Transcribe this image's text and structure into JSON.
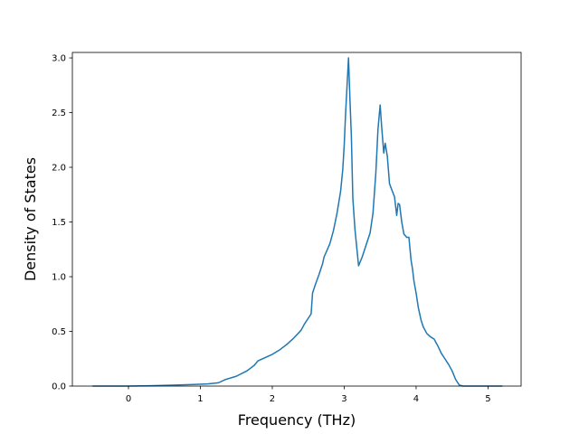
{
  "chart_data": {
    "type": "line",
    "title": "",
    "xlabel": "Frequency (THz)",
    "ylabel": "Density of States",
    "xlim": [
      -0.78,
      5.46
    ],
    "ylim": [
      0,
      3.05
    ],
    "xticks": [
      0,
      1,
      2,
      3,
      4,
      5
    ],
    "xtick_labels": [
      "0",
      "1",
      "2",
      "3",
      "4",
      "5"
    ],
    "yticks": [
      0.0,
      0.5,
      1.0,
      1.5,
      2.0,
      2.5,
      3.0
    ],
    "ytick_labels": [
      "0.0",
      "0.5",
      "1.0",
      "1.5",
      "2.0",
      "2.5",
      "3.0"
    ],
    "grid": false,
    "legend": "none",
    "series": [
      {
        "color": "#1f77b4",
        "x": [
          -0.5,
          0.0,
          0.3,
          0.6,
          0.9,
          1.1,
          1.25,
          1.35,
          1.5,
          1.65,
          1.75,
          1.8,
          1.9,
          2.0,
          2.1,
          2.2,
          2.3,
          2.4,
          2.45,
          2.5,
          2.54,
          2.56,
          2.6,
          2.65,
          2.7,
          2.72,
          2.8,
          2.85,
          2.9,
          2.95,
          2.98,
          3.0,
          3.02,
          3.04,
          3.06,
          3.08,
          3.1,
          3.12,
          3.15,
          3.2,
          3.25,
          3.3,
          3.33,
          3.36,
          3.4,
          3.44,
          3.47,
          3.5,
          3.52,
          3.55,
          3.57,
          3.6,
          3.63,
          3.67,
          3.7,
          3.73,
          3.75,
          3.77,
          3.8,
          3.83,
          3.87,
          3.9,
          3.93,
          3.95,
          3.97,
          4.0,
          4.03,
          4.07,
          4.1,
          4.15,
          4.2,
          4.25,
          4.3,
          4.35,
          4.4,
          4.45,
          4.5,
          4.55,
          4.6,
          4.65,
          4.68,
          4.7,
          4.72,
          4.75,
          4.8,
          5.0,
          5.2
        ],
        "values": [
          0.0,
          0.0,
          0.003,
          0.008,
          0.015,
          0.02,
          0.03,
          0.06,
          0.09,
          0.14,
          0.19,
          0.23,
          0.26,
          0.29,
          0.33,
          0.38,
          0.44,
          0.51,
          0.57,
          0.62,
          0.66,
          0.85,
          0.93,
          1.02,
          1.12,
          1.18,
          1.3,
          1.42,
          1.58,
          1.78,
          1.98,
          2.2,
          2.5,
          2.75,
          3.0,
          2.62,
          2.28,
          1.72,
          1.43,
          1.1,
          1.18,
          1.28,
          1.34,
          1.4,
          1.58,
          1.95,
          2.35,
          2.57,
          2.38,
          2.13,
          2.22,
          2.1,
          1.85,
          1.78,
          1.73,
          1.56,
          1.67,
          1.66,
          1.5,
          1.39,
          1.36,
          1.36,
          1.15,
          1.07,
          0.96,
          0.85,
          0.72,
          0.6,
          0.54,
          0.48,
          0.45,
          0.43,
          0.37,
          0.3,
          0.25,
          0.2,
          0.14,
          0.06,
          0.01,
          0.0,
          0.0,
          0.0,
          0.0,
          0.0,
          0.0,
          0.0,
          0.0
        ]
      }
    ]
  }
}
